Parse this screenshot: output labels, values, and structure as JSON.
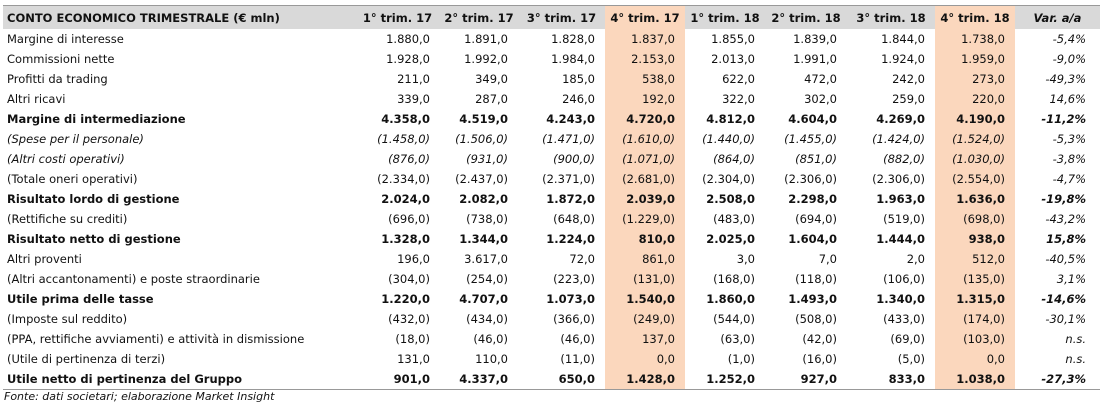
{
  "table": {
    "header": [
      "CONTO ECONOMICO TRIMESTRALE (€ mln)",
      "1° trim. 17",
      "2° trim. 17",
      "3° trim. 17",
      "4° trim. 17",
      "1° trim. 18",
      "2° trim. 18",
      "3° trim. 18",
      "4° trim. 18",
      "Var. a/a"
    ],
    "rows": [
      {
        "label": "Margine di interesse",
        "values": [
          "1.880,0",
          "1.891,0",
          "1.828,0",
          "1.837,0",
          "1.855,0",
          "1.839,0",
          "1.844,0",
          "1.738,0",
          "-5,4%"
        ]
      },
      {
        "label": "Commissioni nette",
        "values": [
          "1.928,0",
          "1.992,0",
          "1.984,0",
          "2.153,0",
          "2.013,0",
          "1.991,0",
          "1.924,0",
          "1.959,0",
          "-9,0%"
        ]
      },
      {
        "label": "Profitti da trading",
        "values": [
          "211,0",
          "349,0",
          "185,0",
          "538,0",
          "622,0",
          "472,0",
          "242,0",
          "273,0",
          "-49,3%"
        ]
      },
      {
        "label": "Altri ricavi",
        "values": [
          "339,0",
          "287,0",
          "246,0",
          "192,0",
          "322,0",
          "302,0",
          "259,0",
          "220,0",
          "14,6%"
        ]
      },
      {
        "label": "Margine di intermediazione",
        "style": "bold",
        "values": [
          "4.358,0",
          "4.519,0",
          "4.243,0",
          "4.720,0",
          "4.812,0",
          "4.604,0",
          "4.269,0",
          "4.190,0",
          "-11,2%"
        ]
      },
      {
        "label": "(Spese per il personale)",
        "style": "italic",
        "values": [
          "(1.458,0)",
          "(1.506,0)",
          "(1.471,0)",
          "(1.610,0)",
          "(1.440,0)",
          "(1.455,0)",
          "(1.424,0)",
          "(1.524,0)",
          "-5,3%"
        ]
      },
      {
        "label": "(Altri costi operativi)",
        "style": "italic",
        "values": [
          "(876,0)",
          "(931,0)",
          "(900,0)",
          "(1.071,0)",
          "(864,0)",
          "(851,0)",
          "(882,0)",
          "(1.030,0)",
          "-3,8%"
        ]
      },
      {
        "label": "(Totale oneri operativi)",
        "values": [
          "(2.334,0)",
          "(2.437,0)",
          "(2.371,0)",
          "(2.681,0)",
          "(2.304,0)",
          "(2.306,0)",
          "(2.306,0)",
          "(2.554,0)",
          "-4,7%"
        ]
      },
      {
        "label": "Risultato lordo di gestione",
        "style": "bold",
        "values": [
          "2.024,0",
          "2.082,0",
          "1.872,0",
          "2.039,0",
          "2.508,0",
          "2.298,0",
          "1.963,0",
          "1.636,0",
          "-19,8%"
        ]
      },
      {
        "label": "(Rettifiche su crediti)",
        "values": [
          "(696,0)",
          "(738,0)",
          "(648,0)",
          "(1.229,0)",
          "(483,0)",
          "(694,0)",
          "(519,0)",
          "(698,0)",
          "-43,2%"
        ]
      },
      {
        "label": "Risultato netto di gestione",
        "style": "bold",
        "values": [
          "1.328,0",
          "1.344,0",
          "1.224,0",
          "810,0",
          "2.025,0",
          "1.604,0",
          "1.444,0",
          "938,0",
          "15,8%"
        ]
      },
      {
        "label": "Altri proventi",
        "values": [
          "196,0",
          "3.617,0",
          "72,0",
          "861,0",
          "3,0",
          "7,0",
          "2,0",
          "512,0",
          "-40,5%"
        ]
      },
      {
        "label": "(Altri accantonamenti) e poste straordinarie",
        "values": [
          "(304,0)",
          "(254,0)",
          "(223,0)",
          "(131,0)",
          "(168,0)",
          "(118,0)",
          "(106,0)",
          "(135,0)",
          "3,1%"
        ]
      },
      {
        "label": "Utile prima delle tasse",
        "style": "bold",
        "values": [
          "1.220,0",
          "4.707,0",
          "1.073,0",
          "1.540,0",
          "1.860,0",
          "1.493,0",
          "1.340,0",
          "1.315,0",
          "-14,6%"
        ]
      },
      {
        "label": "(Imposte sul reddito)",
        "values": [
          "(432,0)",
          "(434,0)",
          "(366,0)",
          "(249,0)",
          "(544,0)",
          "(508,0)",
          "(433,0)",
          "(174,0)",
          "-30,1%"
        ]
      },
      {
        "label": "(PPA, rettifiche avviamenti) e attività in dismissione",
        "values": [
          "(18,0)",
          "(46,0)",
          "(46,0)",
          "137,0",
          "(63,0)",
          "(42,0)",
          "(69,0)",
          "(103,0)",
          "n.s."
        ]
      },
      {
        "label": "(Utile di pertinenza di terzi)",
        "values": [
          "131,0",
          "110,0",
          "(11,0)",
          "0,0",
          "(1,0)",
          "(16,0)",
          "(5,0)",
          "0,0",
          "n.s."
        ]
      },
      {
        "label": "Utile netto di pertinenza del Gruppo",
        "style": "bold",
        "values": [
          "901,0",
          "4.337,0",
          "650,0",
          "1.428,0",
          "1.252,0",
          "927,0",
          "833,0",
          "1.038,0",
          "-27,3%"
        ]
      }
    ],
    "source": "Fonte: dati societari; elaborazione Market Insight"
  }
}
